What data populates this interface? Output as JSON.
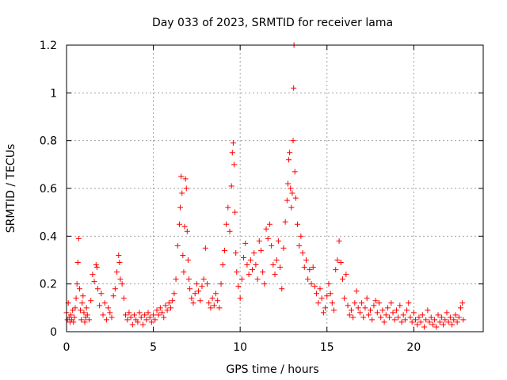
{
  "chart_data": {
    "type": "scatter",
    "title": "Day 033 of 2023, SRMTID for receiver lama",
    "xlabel": "GPS time / hours",
    "ylabel": "SRMTID / TECUs",
    "xlim": [
      0,
      24
    ],
    "ylim": [
      0,
      1.2
    ],
    "xticks": [
      0,
      5,
      10,
      15,
      20
    ],
    "xtick_labels": [
      "0",
      "5",
      "10",
      "15",
      "20"
    ],
    "yticks": [
      0,
      0.2,
      0.4,
      0.6,
      0.8,
      1.0,
      1.2
    ],
    "ytick_labels": [
      "0",
      "0.2",
      "0.4",
      "0.6",
      "0.8",
      "1",
      "1.2"
    ],
    "grid": true,
    "marker": "+",
    "color": "#ff0000",
    "series": [
      {
        "name": "SRMTID",
        "points": [
          [
            0.0,
            0.08
          ],
          [
            0.05,
            0.05
          ],
          [
            0.1,
            0.12
          ],
          [
            0.15,
            0.06
          ],
          [
            0.2,
            0.04
          ],
          [
            0.25,
            0.07
          ],
          [
            0.3,
            0.05
          ],
          [
            0.35,
            0.09
          ],
          [
            0.4,
            0.04
          ],
          [
            0.45,
            0.06
          ],
          [
            0.5,
            0.1
          ],
          [
            0.55,
            0.14
          ],
          [
            0.6,
            0.2
          ],
          [
            0.65,
            0.29
          ],
          [
            0.7,
            0.39
          ],
          [
            0.75,
            0.18
          ],
          [
            0.8,
            0.09
          ],
          [
            0.85,
            0.05
          ],
          [
            0.9,
            0.12
          ],
          [
            0.95,
            0.15
          ],
          [
            1.0,
            0.08
          ],
          [
            1.05,
            0.04
          ],
          [
            1.1,
            0.06
          ],
          [
            1.15,
            0.1
          ],
          [
            1.2,
            0.07
          ],
          [
            1.3,
            0.05
          ],
          [
            1.4,
            0.13
          ],
          [
            1.5,
            0.24
          ],
          [
            1.6,
            0.21
          ],
          [
            1.7,
            0.28
          ],
          [
            1.75,
            0.27
          ],
          [
            1.8,
            0.18
          ],
          [
            1.9,
            0.11
          ],
          [
            2.0,
            0.16
          ],
          [
            2.1,
            0.07
          ],
          [
            2.2,
            0.12
          ],
          [
            2.3,
            0.05
          ],
          [
            2.4,
            0.1
          ],
          [
            2.5,
            0.08
          ],
          [
            2.6,
            0.06
          ],
          [
            2.7,
            0.15
          ],
          [
            2.8,
            0.18
          ],
          [
            2.9,
            0.25
          ],
          [
            3.0,
            0.32
          ],
          [
            3.05,
            0.29
          ],
          [
            3.1,
            0.22
          ],
          [
            3.2,
            0.2
          ],
          [
            3.3,
            0.14
          ],
          [
            3.4,
            0.07
          ],
          [
            3.5,
            0.05
          ],
          [
            3.6,
            0.08
          ],
          [
            3.7,
            0.06
          ],
          [
            3.8,
            0.03
          ],
          [
            3.9,
            0.07
          ],
          [
            4.0,
            0.05
          ],
          [
            4.1,
            0.04
          ],
          [
            4.2,
            0.08
          ],
          [
            4.3,
            0.06
          ],
          [
            4.4,
            0.03
          ],
          [
            4.5,
            0.07
          ],
          [
            4.6,
            0.05
          ],
          [
            4.7,
            0.08
          ],
          [
            4.8,
            0.06
          ],
          [
            4.9,
            0.04
          ],
          [
            5.0,
            0.07
          ],
          [
            5.1,
            0.05
          ],
          [
            5.2,
            0.09
          ],
          [
            5.3,
            0.07
          ],
          [
            5.4,
            0.1
          ],
          [
            5.5,
            0.08
          ],
          [
            5.6,
            0.06
          ],
          [
            5.7,
            0.11
          ],
          [
            5.8,
            0.09
          ],
          [
            5.9,
            0.12
          ],
          [
            6.0,
            0.1
          ],
          [
            6.1,
            0.13
          ],
          [
            6.2,
            0.16
          ],
          [
            6.3,
            0.22
          ],
          [
            6.4,
            0.36
          ],
          [
            6.5,
            0.45
          ],
          [
            6.55,
            0.52
          ],
          [
            6.6,
            0.65
          ],
          [
            6.65,
            0.58
          ],
          [
            6.7,
            0.32
          ],
          [
            6.75,
            0.25
          ],
          [
            6.8,
            0.44
          ],
          [
            6.85,
            0.64
          ],
          [
            6.9,
            0.6
          ],
          [
            6.95,
            0.42
          ],
          [
            7.0,
            0.3
          ],
          [
            7.05,
            0.22
          ],
          [
            7.1,
            0.18
          ],
          [
            7.2,
            0.14
          ],
          [
            7.3,
            0.12
          ],
          [
            7.4,
            0.16
          ],
          [
            7.5,
            0.2
          ],
          [
            7.6,
            0.17
          ],
          [
            7.7,
            0.13
          ],
          [
            7.8,
            0.19
          ],
          [
            7.9,
            0.22
          ],
          [
            8.0,
            0.35
          ],
          [
            8.1,
            0.2
          ],
          [
            8.2,
            0.12
          ],
          [
            8.3,
            0.1
          ],
          [
            8.4,
            0.14
          ],
          [
            8.5,
            0.11
          ],
          [
            8.6,
            0.16
          ],
          [
            8.7,
            0.13
          ],
          [
            8.8,
            0.1
          ],
          [
            8.9,
            0.2
          ],
          [
            9.0,
            0.28
          ],
          [
            9.1,
            0.34
          ],
          [
            9.2,
            0.45
          ],
          [
            9.3,
            0.52
          ],
          [
            9.4,
            0.42
          ],
          [
            9.5,
            0.61
          ],
          [
            9.55,
            0.75
          ],
          [
            9.6,
            0.79
          ],
          [
            9.65,
            0.7
          ],
          [
            9.7,
            0.5
          ],
          [
            9.75,
            0.33
          ],
          [
            9.8,
            0.25
          ],
          [
            9.9,
            0.19
          ],
          [
            10.0,
            0.14
          ],
          [
            10.1,
            0.22
          ],
          [
            10.2,
            0.31
          ],
          [
            10.3,
            0.37
          ],
          [
            10.4,
            0.28
          ],
          [
            10.5,
            0.24
          ],
          [
            10.6,
            0.3
          ],
          [
            10.7,
            0.26
          ],
          [
            10.8,
            0.33
          ],
          [
            10.9,
            0.28
          ],
          [
            11.0,
            0.22
          ],
          [
            11.1,
            0.38
          ],
          [
            11.2,
            0.34
          ],
          [
            11.3,
            0.25
          ],
          [
            11.4,
            0.2
          ],
          [
            11.5,
            0.43
          ],
          [
            11.6,
            0.39
          ],
          [
            11.7,
            0.45
          ],
          [
            11.8,
            0.36
          ],
          [
            11.9,
            0.28
          ],
          [
            12.0,
            0.24
          ],
          [
            12.1,
            0.3
          ],
          [
            12.2,
            0.38
          ],
          [
            12.3,
            0.27
          ],
          [
            12.4,
            0.18
          ],
          [
            12.5,
            0.35
          ],
          [
            12.6,
            0.46
          ],
          [
            12.7,
            0.55
          ],
          [
            12.75,
            0.62
          ],
          [
            12.8,
            0.72
          ],
          [
            12.85,
            0.75
          ],
          [
            12.9,
            0.6
          ],
          [
            12.95,
            0.52
          ],
          [
            13.0,
            0.58
          ],
          [
            13.05,
            0.8
          ],
          [
            13.08,
            1.02
          ],
          [
            13.1,
            1.2
          ],
          [
            13.15,
            0.67
          ],
          [
            13.2,
            0.56
          ],
          [
            13.3,
            0.45
          ],
          [
            13.4,
            0.36
          ],
          [
            13.5,
            0.4
          ],
          [
            13.6,
            0.33
          ],
          [
            13.7,
            0.27
          ],
          [
            13.8,
            0.3
          ],
          [
            13.9,
            0.22
          ],
          [
            14.0,
            0.26
          ],
          [
            14.1,
            0.2
          ],
          [
            14.2,
            0.27
          ],
          [
            14.3,
            0.19
          ],
          [
            14.4,
            0.16
          ],
          [
            14.5,
            0.12
          ],
          [
            14.6,
            0.18
          ],
          [
            14.7,
            0.14
          ],
          [
            14.8,
            0.08
          ],
          [
            14.9,
            0.1
          ],
          [
            15.0,
            0.15
          ],
          [
            15.1,
            0.2
          ],
          [
            15.2,
            0.16
          ],
          [
            15.3,
            0.12
          ],
          [
            15.4,
            0.09
          ],
          [
            15.5,
            0.26
          ],
          [
            15.6,
            0.3
          ],
          [
            15.7,
            0.38
          ],
          [
            15.8,
            0.29
          ],
          [
            15.9,
            0.22
          ],
          [
            16.0,
            0.14
          ],
          [
            16.1,
            0.24
          ],
          [
            16.2,
            0.11
          ],
          [
            16.3,
            0.07
          ],
          [
            16.4,
            0.09
          ],
          [
            16.5,
            0.06
          ],
          [
            16.6,
            0.12
          ],
          [
            16.7,
            0.17
          ],
          [
            16.8,
            0.1
          ],
          [
            16.9,
            0.08
          ],
          [
            17.0,
            0.12
          ],
          [
            17.1,
            0.06
          ],
          [
            17.2,
            0.1
          ],
          [
            17.3,
            0.14
          ],
          [
            17.4,
            0.07
          ],
          [
            17.5,
            0.09
          ],
          [
            17.6,
            0.05
          ],
          [
            17.7,
            0.11
          ],
          [
            17.8,
            0.13
          ],
          [
            17.9,
            0.08
          ],
          [
            18.0,
            0.12
          ],
          [
            18.1,
            0.06
          ],
          [
            18.2,
            0.09
          ],
          [
            18.3,
            0.04
          ],
          [
            18.4,
            0.07
          ],
          [
            18.5,
            0.1
          ],
          [
            18.6,
            0.06
          ],
          [
            18.7,
            0.12
          ],
          [
            18.8,
            0.08
          ],
          [
            18.9,
            0.05
          ],
          [
            19.0,
            0.09
          ],
          [
            19.1,
            0.06
          ],
          [
            19.2,
            0.11
          ],
          [
            19.3,
            0.04
          ],
          [
            19.4,
            0.07
          ],
          [
            19.5,
            0.05
          ],
          [
            19.6,
            0.09
          ],
          [
            19.7,
            0.12
          ],
          [
            19.8,
            0.06
          ],
          [
            19.9,
            0.04
          ],
          [
            20.0,
            0.08
          ],
          [
            20.1,
            0.05
          ],
          [
            20.2,
            0.03
          ],
          [
            20.3,
            0.06
          ],
          [
            20.4,
            0.04
          ],
          [
            20.5,
            0.07
          ],
          [
            20.6,
            0.02
          ],
          [
            20.7,
            0.05
          ],
          [
            20.8,
            0.09
          ],
          [
            20.9,
            0.04
          ],
          [
            21.0,
            0.06
          ],
          [
            21.1,
            0.03
          ],
          [
            21.2,
            0.05
          ],
          [
            21.3,
            0.02
          ],
          [
            21.4,
            0.07
          ],
          [
            21.5,
            0.04
          ],
          [
            21.6,
            0.06
          ],
          [
            21.7,
            0.03
          ],
          [
            21.8,
            0.05
          ],
          [
            21.9,
            0.08
          ],
          [
            22.0,
            0.04
          ],
          [
            22.1,
            0.06
          ],
          [
            22.2,
            0.03
          ],
          [
            22.3,
            0.05
          ],
          [
            22.4,
            0.07
          ],
          [
            22.5,
            0.04
          ],
          [
            22.6,
            0.06
          ],
          [
            22.7,
            0.1
          ],
          [
            22.8,
            0.12
          ],
          [
            22.85,
            0.05
          ]
        ]
      }
    ]
  }
}
